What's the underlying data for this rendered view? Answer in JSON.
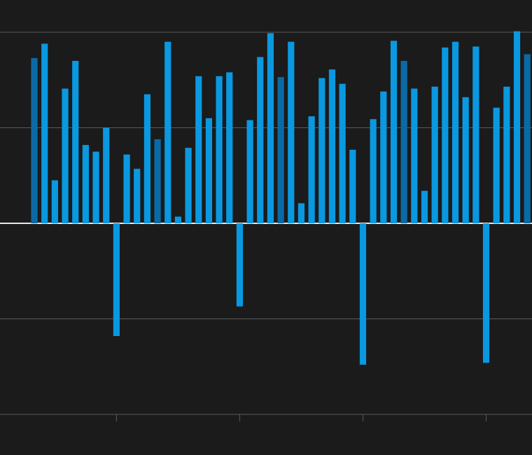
{
  "chart_data": {
    "type": "bar",
    "categories": [
      null,
      null,
      null,
      null,
      null,
      null,
      null,
      null,
      null,
      null,
      null,
      null,
      null,
      null,
      null,
      null,
      null,
      null,
      null,
      null,
      null,
      null,
      null,
      null,
      null,
      null,
      null,
      null,
      null,
      null,
      null,
      null,
      null,
      null,
      null,
      null,
      null,
      null,
      null,
      null,
      null,
      null,
      null,
      null,
      null,
      null,
      null,
      null,
      null
    ],
    "values": [
      1.73,
      1.88,
      0.45,
      1.41,
      1.7,
      0.82,
      0.75,
      1.0,
      -1.18,
      0.72,
      0.57,
      1.35,
      0.88,
      1.9,
      0.07,
      0.79,
      1.54,
      1.1,
      1.54,
      1.58,
      -0.87,
      1.08,
      1.74,
      1.99,
      1.53,
      1.9,
      0.21,
      1.12,
      1.52,
      1.61,
      1.46,
      0.77,
      -1.48,
      1.09,
      1.38,
      1.91,
      1.7,
      1.41,
      0.34,
      1.43,
      1.84,
      1.9,
      1.32,
      1.85,
      -1.46,
      1.21,
      1.43,
      2.01,
      1.77
    ],
    "colors": [
      "#0a6aa6",
      "#0a98e0",
      "#0a98e0",
      "#0a98e0",
      "#0a98e0",
      "#0a98e0",
      "#0a98e0",
      "#0a98e0",
      "#0a98e0",
      "#0a98e0",
      "#0a98e0",
      "#0a98e0",
      "#0a6aa6",
      "#0a98e0",
      "#0a98e0",
      "#0a98e0",
      "#0a98e0",
      "#0a98e0",
      "#0a98e0",
      "#0a98e0",
      "#0a98e0",
      "#0a98e0",
      "#0a98e0",
      "#0a98e0",
      "#0a6aa6",
      "#0a98e0",
      "#0a98e0",
      "#0a98e0",
      "#0a98e0",
      "#0a98e0",
      "#0a98e0",
      "#0a98e0",
      "#0a98e0",
      "#0a98e0",
      "#0a98e0",
      "#0a98e0",
      "#0a6aa6",
      "#0a98e0",
      "#0a98e0",
      "#0a98e0",
      "#0a98e0",
      "#0a98e0",
      "#0a98e0",
      "#0a98e0",
      "#0a98e0",
      "#0a98e0",
      "#0a98e0",
      "#0a98e0",
      "#0a6aa6"
    ],
    "ylim": [
      -2,
      2
    ],
    "yticks": [
      -2,
      -1,
      0,
      1,
      2
    ],
    "grid": true
  }
}
